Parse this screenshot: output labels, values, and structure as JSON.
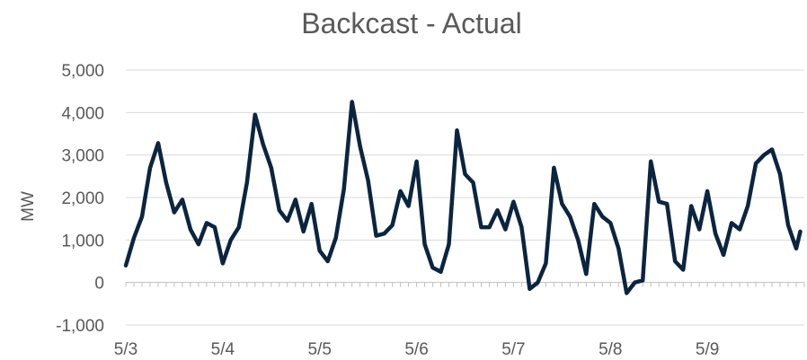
{
  "chart_data": {
    "type": "line",
    "title": "Backcast - Actual",
    "xlabel": "",
    "ylabel": "MW",
    "ylim": [
      -1000,
      5000
    ],
    "y_ticks": [
      -1000,
      0,
      1000,
      2000,
      3000,
      4000,
      5000
    ],
    "y_tick_labels": [
      "-1,000",
      "0",
      "1,000",
      "2,000",
      "3,000",
      "4,000",
      "5,000"
    ],
    "x_ticks": [
      "5/3",
      "5/4",
      "5/5",
      "5/6",
      "5/7",
      "5/8",
      "5/9"
    ],
    "grid": true,
    "legend": "none",
    "series": [
      {
        "color": "#0b2540",
        "x": [
          "5/3 00:00",
          "5/3 02:00",
          "5/3 04:00",
          "5/3 06:00",
          "5/3 08:00",
          "5/3 10:00",
          "5/3 12:00",
          "5/3 14:00",
          "5/3 16:00",
          "5/3 18:00",
          "5/3 20:00",
          "5/3 22:00",
          "5/4 00:00",
          "5/4 02:00",
          "5/4 04:00",
          "5/4 06:00",
          "5/4 08:00",
          "5/4 10:00",
          "5/4 12:00",
          "5/4 14:00",
          "5/4 16:00",
          "5/4 18:00",
          "5/4 20:00",
          "5/4 22:00",
          "5/5 00:00",
          "5/5 02:00",
          "5/5 04:00",
          "5/5 06:00",
          "5/5 08:00",
          "5/5 10:00",
          "5/5 12:00",
          "5/5 14:00",
          "5/5 16:00",
          "5/5 18:00",
          "5/5 20:00",
          "5/5 22:00",
          "5/6 00:00",
          "5/6 02:00",
          "5/6 04:00",
          "5/6 06:00",
          "5/6 08:00",
          "5/6 10:00",
          "5/6 12:00",
          "5/6 14:00",
          "5/6 16:00",
          "5/6 18:00",
          "5/6 20:00",
          "5/6 22:00",
          "5/7 00:00",
          "5/7 02:00",
          "5/7 04:00",
          "5/7 06:00",
          "5/7 08:00",
          "5/7 10:00",
          "5/7 12:00",
          "5/7 14:00",
          "5/7 16:00",
          "5/7 18:00",
          "5/7 20:00",
          "5/7 22:00",
          "5/8 00:00",
          "5/8 02:00",
          "5/8 04:00",
          "5/8 06:00",
          "5/8 08:00",
          "5/8 10:00",
          "5/8 12:00",
          "5/8 14:00",
          "5/8 16:00",
          "5/8 18:00",
          "5/8 20:00",
          "5/8 22:00",
          "5/9 00:00",
          "5/9 02:00",
          "5/9 04:00",
          "5/9 06:00",
          "5/9 08:00",
          "5/9 10:00",
          "5/9 12:00",
          "5/9 14:00",
          "5/9 16:00",
          "5/9 18:00",
          "5/9 20:00",
          "5/9 22:00",
          "5/9 23:00"
        ],
        "values": [
          400,
          1050,
          1550,
          2700,
          3280,
          2350,
          1650,
          1950,
          1250,
          900,
          1400,
          1300,
          450,
          1000,
          1300,
          2350,
          3950,
          3250,
          2700,
          1700,
          1450,
          1950,
          1200,
          1850,
          750,
          500,
          1050,
          2200,
          4250,
          3200,
          2400,
          1100,
          1150,
          1350,
          2150,
          1800,
          2850,
          900,
          350,
          250,
          900,
          3580,
          2550,
          2350,
          1300,
          1300,
          1700,
          1250,
          1900,
          1300,
          -150,
          0,
          450,
          2700,
          1850,
          1550,
          1000,
          200,
          1850,
          1550,
          1400,
          800,
          -250,
          0,
          50,
          2850,
          1900,
          1850,
          500,
          300,
          1800,
          1250,
          2150,
          1150,
          650,
          1400,
          1250,
          1800,
          2800,
          3000,
          3130,
          2550,
          1350,
          800,
          1200
        ],
        "x_positions_hours": [
          0,
          2,
          4,
          6,
          8,
          10,
          12,
          14,
          16,
          18,
          20,
          22,
          24,
          26,
          28,
          30,
          32,
          34,
          36,
          38,
          40,
          42,
          44,
          46,
          48,
          50,
          52,
          54,
          56,
          58,
          60,
          62,
          64,
          66,
          68,
          70,
          72,
          74,
          76,
          78,
          80,
          82,
          84,
          86,
          88,
          90,
          92,
          94,
          96,
          98,
          100,
          102,
          104,
          106,
          108,
          110,
          112,
          114,
          116,
          118,
          120,
          122,
          124,
          126,
          128,
          130,
          132,
          134,
          136,
          138,
          140,
          142,
          144,
          146,
          148,
          150,
          152,
          154,
          156,
          158,
          160,
          162,
          164,
          166,
          167
        ]
      }
    ]
  }
}
